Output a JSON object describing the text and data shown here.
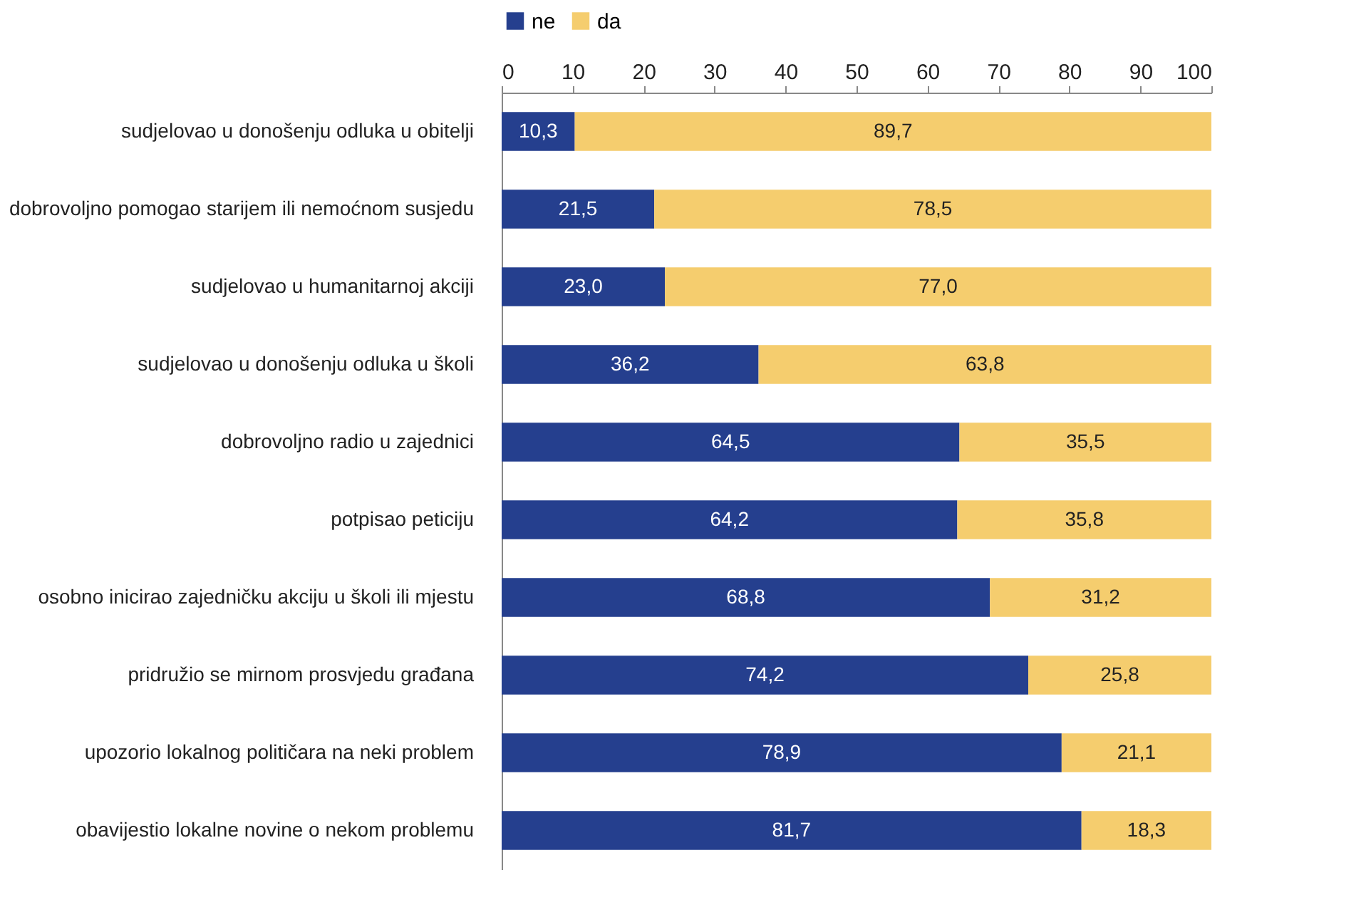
{
  "chart_data": {
    "type": "bar",
    "orientation": "horizontal",
    "stacked": true,
    "categories": [
      "sudjelovao u donošenju odluka u obitelji",
      "dobrovoljno pomogao starijem ili nemoćnom susjedu",
      "sudjelovao u humanitarnoj akciji",
      "sudjelovao u donošenju odluka u školi",
      "dobrovoljno radio u zajednici",
      "potpisao peticiju",
      "osobno inicirao zajedničku akciju u školi ili mjestu",
      "pridružio se mirnom prosvjedu građana",
      "upozorio lokalnog političara na neki problem",
      "obavijestio lokalne novine o nekom problemu"
    ],
    "series": [
      {
        "name": "ne",
        "color": "#253f8e",
        "values": [
          10.3,
          21.5,
          23.0,
          36.2,
          64.5,
          64.2,
          68.8,
          74.2,
          78.9,
          81.7
        ],
        "value_labels": [
          "10,3",
          "21,5",
          "23,0",
          "36,2",
          "64,5",
          "64,2",
          "68,8",
          "74,2",
          "78,9",
          "81,7"
        ]
      },
      {
        "name": "da",
        "color": "#f5cd6e",
        "values": [
          89.7,
          78.5,
          77.0,
          63.8,
          35.5,
          35.8,
          31.2,
          25.8,
          21.1,
          18.3
        ],
        "value_labels": [
          "89,7",
          "78,5",
          "77,0",
          "63,8",
          "35,5",
          "35,8",
          "31,2",
          "25,8",
          "21,1",
          "18,3"
        ]
      }
    ],
    "xlim": [
      0,
      100
    ],
    "xticks": [
      0,
      10,
      20,
      30,
      40,
      50,
      60,
      70,
      80,
      90,
      100
    ],
    "grid": false,
    "legend": "top"
  }
}
